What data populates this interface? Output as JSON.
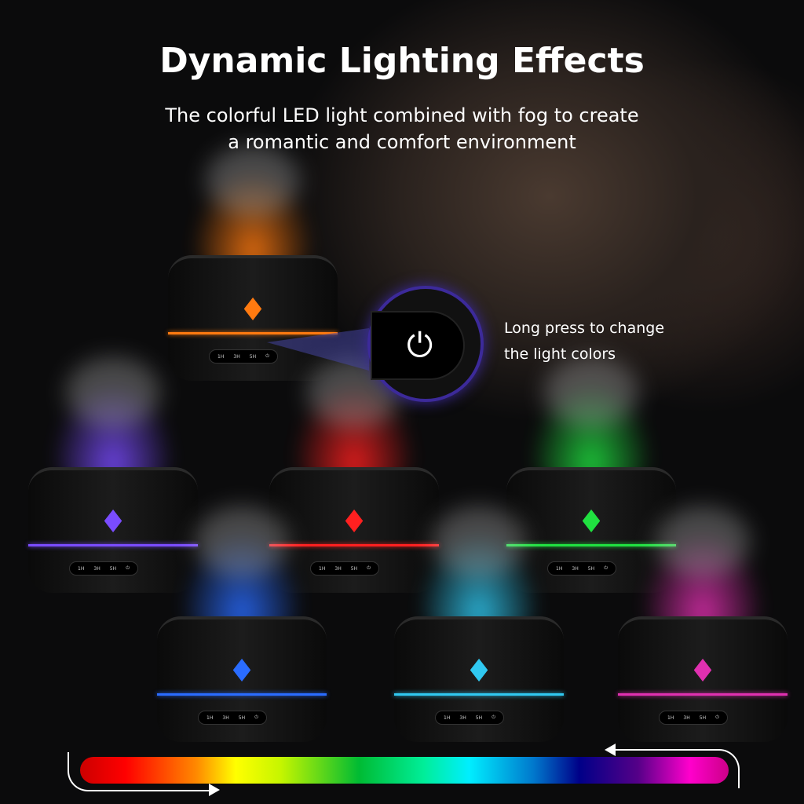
{
  "header": {
    "title": "Dynamic Lighting Effects",
    "subtitle_line1": "The colorful LED light combined with fog to create",
    "subtitle_line2": "a romantic and comfort environment"
  },
  "callout": {
    "line1": "Long press to change",
    "line2": "the light colors",
    "icon": "power-icon",
    "ring_color": "#3c2a9a"
  },
  "timer_labels": [
    "1H",
    "3H",
    "5H"
  ],
  "diffusers": [
    {
      "color_name": "orange",
      "color": "#ff7a10"
    },
    {
      "color_name": "violet",
      "color": "#7a4cff"
    },
    {
      "color_name": "red",
      "color": "#ff2020"
    },
    {
      "color_name": "green",
      "color": "#20e040"
    },
    {
      "color_name": "blue",
      "color": "#2a6cff"
    },
    {
      "color_name": "cyan",
      "color": "#30c8f0"
    },
    {
      "color_name": "magenta",
      "color": "#e030b0"
    }
  ],
  "color_spectrum": [
    "#ff0000",
    "#ff8a00",
    "#ffff00",
    "#00bb33",
    "#00eeff",
    "#000088",
    "#ff00cc"
  ]
}
